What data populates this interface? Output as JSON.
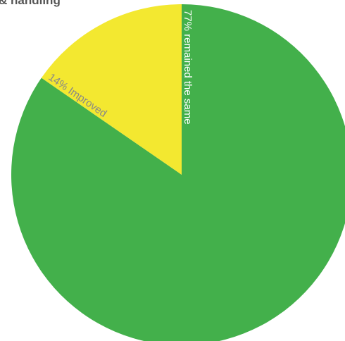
{
  "title": "& handling",
  "chart_data": {
    "type": "pie",
    "slices": [
      {
        "label": "77% remained the same",
        "value": 77,
        "color": "#43b04b",
        "label_color": "#ffffff"
      },
      {
        "label": "14% Improved",
        "value": 14,
        "color": "#f3e830",
        "label_color": "#888888"
      }
    ]
  }
}
